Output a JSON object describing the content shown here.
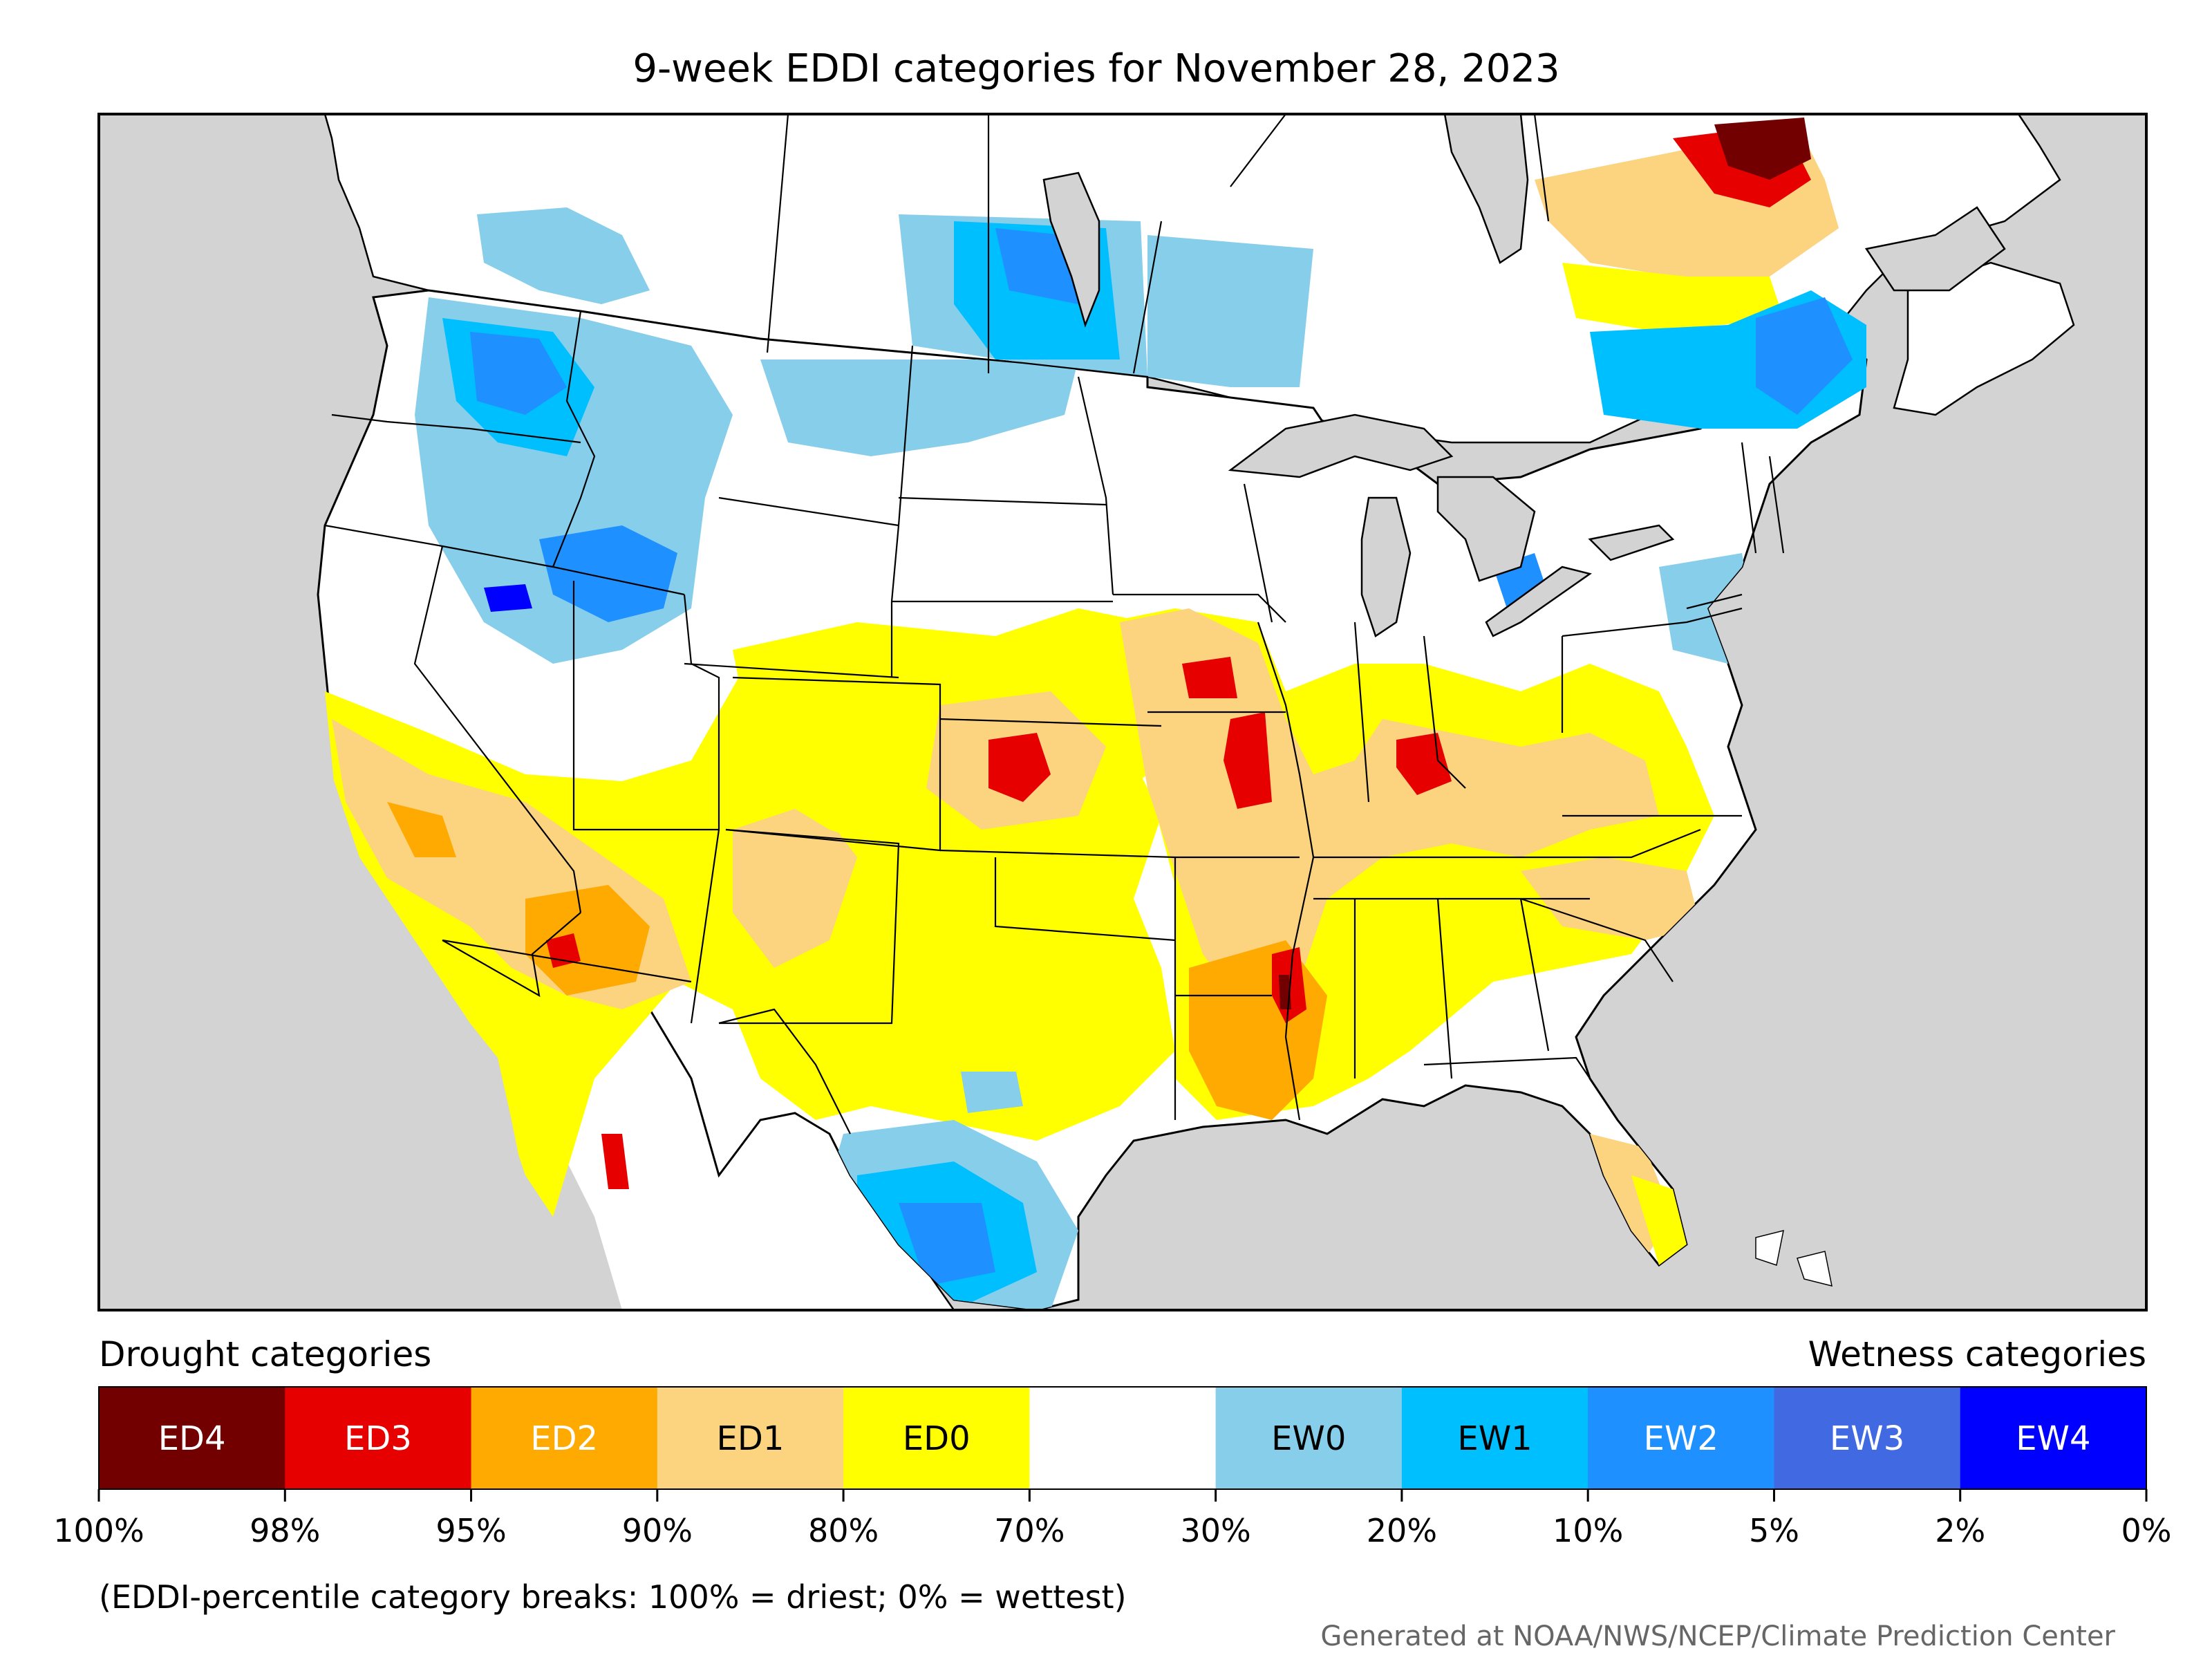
{
  "title": "9-week EDDI categories for November 28, 2023",
  "legend": {
    "drought_heading": "Drought categories",
    "wetness_heading": "Wetness categories",
    "categories": [
      {
        "label": "ED4",
        "color": "#730000",
        "text_color": "#ffffff"
      },
      {
        "label": "ED3",
        "color": "#e60000",
        "text_color": "#ffffff"
      },
      {
        "label": "ED2",
        "color": "#ffaa00",
        "text_color": "#ffffff"
      },
      {
        "label": "ED1",
        "color": "#fcd37f",
        "text_color": "#000000"
      },
      {
        "label": "ED0",
        "color": "#ffff00",
        "text_color": "#000000"
      },
      {
        "label": "",
        "color": "#ffffff",
        "text_color": "#000000"
      },
      {
        "label": "EW0",
        "color": "#87ceeb",
        "text_color": "#000000"
      },
      {
        "label": "EW1",
        "color": "#00bfff",
        "text_color": "#000000"
      },
      {
        "label": "EW2",
        "color": "#1e90ff",
        "text_color": "#ffffff"
      },
      {
        "label": "EW3",
        "color": "#4169e1",
        "text_color": "#ffffff"
      },
      {
        "label": "EW4",
        "color": "#0000ff",
        "text_color": "#ffffff"
      }
    ],
    "breaks": [
      "100%",
      "98%",
      "95%",
      "90%",
      "80%",
      "70%",
      "30%",
      "20%",
      "10%",
      "5%",
      "2%",
      "0%"
    ],
    "note": "(EDDI-percentile category breaks: 100% = driest; 0% = wettest)"
  },
  "credit": "Generated at NOAA/NWS/NCEP/Climate Prediction Center",
  "map": {
    "background_color": "#d3d3d3",
    "land_color": "#ffffff",
    "water_color": "#d3d3d3"
  }
}
